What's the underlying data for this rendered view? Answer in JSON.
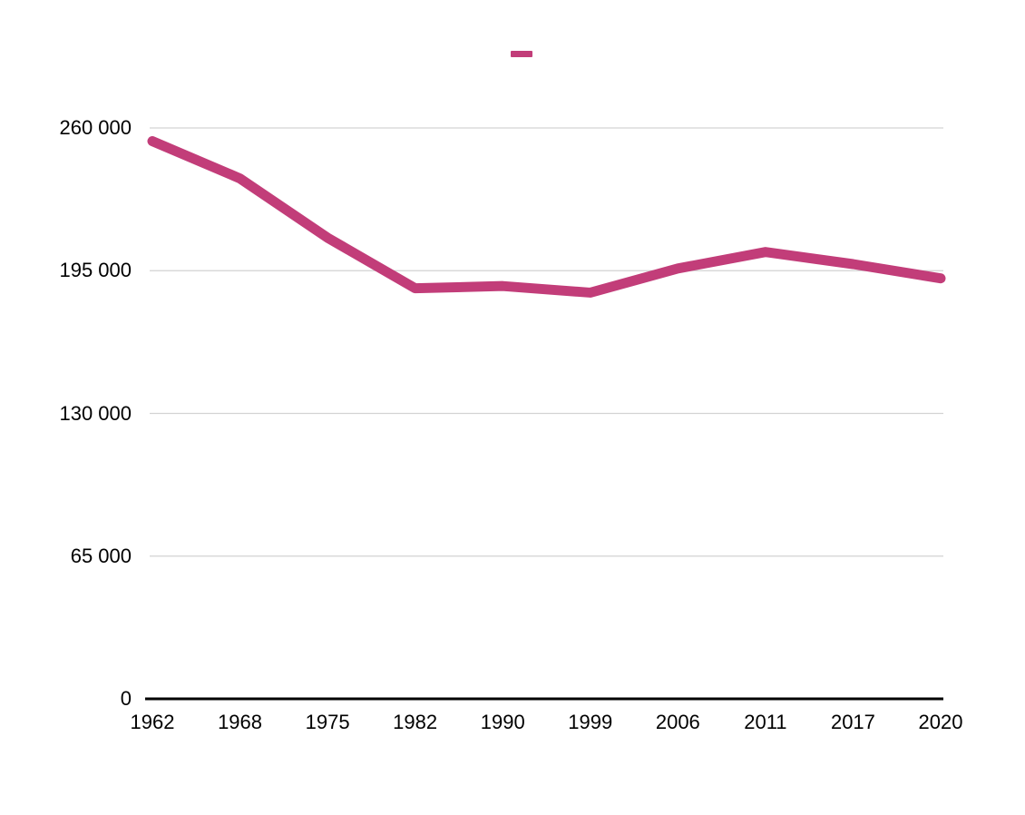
{
  "chart_data": {
    "type": "line",
    "title": "",
    "categories": [
      "1962",
      "1968",
      "1975",
      "1982",
      "1990",
      "1999",
      "2006",
      "2011",
      "2017",
      "2020"
    ],
    "series": [
      {
        "name": "",
        "color": "#C23D79",
        "values": [
          254000,
          237000,
          210000,
          187000,
          188000,
          185000,
          196000,
          203500,
          198000,
          191500
        ]
      }
    ],
    "y_ticks": [
      {
        "value": 0,
        "label": "0"
      },
      {
        "value": 65000,
        "label": "65 000"
      },
      {
        "value": 130000,
        "label": "130 000"
      },
      {
        "value": 195000,
        "label": "195 000"
      },
      {
        "value": 260000,
        "label": "260 000"
      }
    ],
    "ylim": [
      0,
      260000
    ],
    "grid": true,
    "legend_position": "top-center",
    "xlabel": "",
    "ylabel": ""
  },
  "colors": {
    "line": "#C23D79",
    "gridline": "#D3D3D3",
    "axis": "#000000",
    "text": "#000000",
    "background": "#FFFFFF"
  }
}
